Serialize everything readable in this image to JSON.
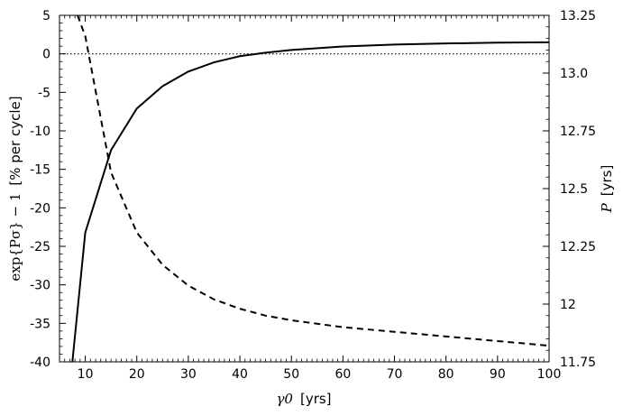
{
  "chart_data": {
    "type": "line",
    "title": "",
    "xlabel_symbol": "γ0",
    "xlabel_unit": "[yrs]",
    "ylabel_left_math": "exp{Pσ} − 1",
    "ylabel_left_unit": "[% per cycle]",
    "ylabel_right_symbol": "P",
    "ylabel_right_unit": "[yrs]",
    "xlim": [
      5,
      100
    ],
    "ylim_left": [
      -40,
      5
    ],
    "ylim_right": [
      11.75,
      13.25
    ],
    "x_ticks": [
      "10",
      "20",
      "30",
      "40",
      "50",
      "60",
      "70",
      "80",
      "90",
      "100"
    ],
    "y_left_ticks": [
      "5",
      "0",
      "-5",
      "-10",
      "-15",
      "-20",
      "-25",
      "-30",
      "-35",
      "-40"
    ],
    "y_right_ticks": [
      "13.25",
      "13.0",
      "12.75",
      "12.5",
      "12.25",
      "12",
      "11.75"
    ],
    "reference_line_left": 0,
    "series": [
      {
        "axis": "left",
        "style": "solid",
        "x": [
          7.5,
          10,
          15,
          20,
          25,
          30,
          35,
          40,
          45,
          50,
          60,
          70,
          80,
          90,
          100
        ],
        "y": [
          -40,
          -23.2,
          -12.5,
          -7.1,
          -4.2,
          -2.3,
          -1.1,
          -0.3,
          0.15,
          0.5,
          0.95,
          1.2,
          1.35,
          1.45,
          1.5
        ]
      },
      {
        "axis": "right",
        "style": "dashed",
        "x": [
          8.5,
          10,
          15,
          20,
          25,
          30,
          35,
          40,
          45,
          50,
          60,
          70,
          80,
          90,
          100
        ],
        "y": [
          13.25,
          13.16,
          12.57,
          12.31,
          12.17,
          12.08,
          12.02,
          11.98,
          11.95,
          11.93,
          11.9,
          11.88,
          11.86,
          11.84,
          11.82
        ]
      }
    ]
  }
}
